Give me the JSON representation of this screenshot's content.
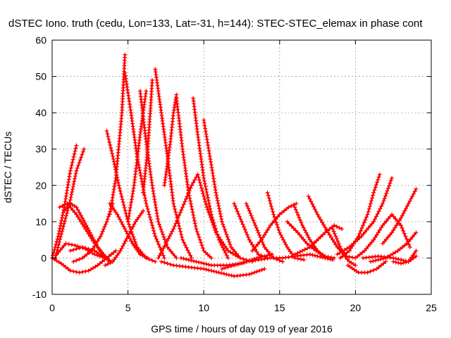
{
  "chart_data": {
    "type": "scatter",
    "title": "dSTEC Iono. truth (cedu, Lon=133, Lat=-31, h=144): STEC-STEC_elemax in phase cont",
    "xlabel": "GPS time / hours of day 019 of year 2016",
    "ylabel": "dSTEC  / TECUs",
    "xlim": [
      0,
      25
    ],
    "ylim": [
      -10,
      60
    ],
    "xticks": [
      "0",
      "5",
      "10",
      "15",
      "20",
      "25"
    ],
    "yticks": [
      "-10",
      "0",
      "10",
      "20",
      "30",
      "40",
      "50",
      "60"
    ],
    "grid": true,
    "marker": "+",
    "color": "#ff0000",
    "series": [
      {
        "x": [
          0.0,
          0.4,
          0.8,
          1.2,
          1.6
        ],
        "y": [
          0,
          6,
          14,
          24,
          31
        ]
      },
      {
        "x": [
          0.2,
          0.7,
          1.2,
          1.6,
          2.1
        ],
        "y": [
          0,
          8,
          16,
          24,
          30
        ]
      },
      {
        "x": [
          0.0,
          0.6,
          1.2,
          1.8,
          2.4,
          3.0,
          3.6,
          4.2
        ],
        "y": [
          0,
          -1.5,
          -3.5,
          -4,
          -3.5,
          -2,
          0,
          2
        ]
      },
      {
        "x": [
          0.3,
          0.9,
          1.5,
          2.2,
          2.8,
          3.5,
          3.9
        ],
        "y": [
          1,
          4,
          3.5,
          2.5,
          1,
          0,
          -1
        ]
      },
      {
        "x": [
          0.5,
          1.0,
          1.6,
          2.2,
          2.8,
          3.4,
          3.8
        ],
        "y": [
          14,
          15,
          12,
          8,
          4,
          1,
          -1
        ]
      },
      {
        "x": [
          0.8,
          1.2,
          1.6,
          2.0,
          2.5,
          3.0,
          3.5
        ],
        "y": [
          13,
          15,
          14,
          11,
          7,
          3,
          0
        ]
      },
      {
        "x": [
          1.4,
          2.0,
          2.6,
          3.2,
          3.6,
          4.0
        ],
        "y": [
          -1,
          0,
          2,
          6,
          10,
          15
        ]
      },
      {
        "x": [
          1.2,
          2.0,
          2.8,
          3.5
        ],
        "y": [
          2,
          3,
          2,
          0
        ]
      },
      {
        "x": [
          3.6,
          4.0,
          4.4,
          5.0,
          5.6,
          6.2,
          6.8
        ],
        "y": [
          35,
          28,
          20,
          10,
          3,
          0,
          -1
        ]
      },
      {
        "x": [
          3.8,
          4.3,
          4.8,
          5.3,
          5.8,
          6.3
        ],
        "y": [
          15,
          12,
          8,
          4,
          1,
          0
        ]
      },
      {
        "x": [
          3.5,
          4.0,
          4.5,
          5.0,
          5.5,
          6.0
        ],
        "y": [
          -2,
          -1,
          2,
          6,
          10,
          13
        ]
      },
      {
        "x": [
          3.8,
          4.2,
          4.6,
          4.8
        ],
        "y": [
          12,
          22,
          40,
          56
        ]
      },
      {
        "x": [
          4.8,
          5.2,
          5.6,
          6.2,
          6.8,
          7.4
        ],
        "y": [
          51,
          40,
          28,
          15,
          6,
          0
        ]
      },
      {
        "x": [
          5.0,
          5.4,
          5.8,
          6.2
        ],
        "y": [
          10,
          20,
          34,
          46
        ]
      },
      {
        "x": [
          5.8,
          6.2,
          6.6,
          7.0,
          7.6,
          8.2
        ],
        "y": [
          46,
          32,
          20,
          10,
          3,
          0
        ]
      },
      {
        "x": [
          6.0,
          6.3,
          6.5,
          6.6
        ],
        "y": [
          18,
          30,
          42,
          49
        ]
      },
      {
        "x": [
          6.8,
          7.2,
          7.6,
          8.0,
          8.6,
          9.2
        ],
        "y": [
          52,
          40,
          28,
          15,
          5,
          0
        ]
      },
      {
        "x": [
          7.4,
          7.8,
          8.0,
          8.2
        ],
        "y": [
          20,
          32,
          40,
          45
        ]
      },
      {
        "x": [
          8.2,
          8.6,
          9.0,
          9.5,
          10.0,
          10.5
        ],
        "y": [
          44,
          30,
          18,
          8,
          2,
          0
        ]
      },
      {
        "x": [
          9.3,
          9.6,
          10.0,
          10.5,
          11.0,
          11.6
        ],
        "y": [
          44,
          34,
          22,
          12,
          5,
          0
        ]
      },
      {
        "x": [
          10.0,
          10.4,
          10.8,
          11.2,
          11.8,
          12.4
        ],
        "y": [
          38,
          28,
          18,
          10,
          3,
          0
        ]
      },
      {
        "x": [
          7.0,
          8.0,
          8.6,
          9.2,
          9.6
        ],
        "y": [
          0,
          8,
          14,
          20,
          23
        ]
      },
      {
        "x": [
          9.6,
          10.2,
          10.8,
          11.6,
          12.4,
          13.2
        ],
        "y": [
          23,
          14,
          7,
          2,
          0,
          -1
        ]
      },
      {
        "x": [
          7.2,
          8.0,
          9.0,
          10.0,
          11.0,
          12.0,
          13.0,
          14.0
        ],
        "y": [
          -1,
          -2,
          -2.5,
          -3,
          -4,
          -5,
          -4.5,
          -3
        ]
      },
      {
        "x": [
          8.5,
          9.5,
          10.5,
          11.5,
          12.5,
          13.5,
          14.5
        ],
        "y": [
          0,
          -1,
          -2,
          -2,
          -1.5,
          0,
          1
        ]
      },
      {
        "x": [
          12.0,
          12.5,
          13.0,
          13.6,
          14.2
        ],
        "y": [
          15,
          10,
          5,
          1,
          0
        ]
      },
      {
        "x": [
          12.8,
          13.2,
          13.6,
          14.0,
          14.6,
          15.2
        ],
        "y": [
          15,
          11,
          7,
          3,
          0,
          -1
        ]
      },
      {
        "x": [
          14.2,
          14.6,
          15.0,
          15.5,
          16.0,
          16.6
        ],
        "y": [
          18,
          12,
          7,
          3,
          0,
          -0.5
        ]
      },
      {
        "x": [
          13.2,
          13.8,
          14.4,
          15.0,
          15.6,
          16.1
        ],
        "y": [
          2,
          5,
          9,
          12,
          14,
          15
        ]
      },
      {
        "x": [
          16.0,
          16.5,
          17.0,
          17.5,
          18.0,
          18.5
        ],
        "y": [
          14,
          9,
          5,
          2,
          0,
          -0.5
        ]
      },
      {
        "x": [
          15.5,
          16.2,
          16.8,
          17.4,
          18.0,
          18.6
        ],
        "y": [
          10,
          7,
          4,
          2,
          0.5,
          0
        ]
      },
      {
        "x": [
          16.9,
          17.5,
          18.2,
          18.8,
          19.4,
          20.0
        ],
        "y": [
          17,
          12,
          7,
          3,
          0.5,
          0
        ]
      },
      {
        "x": [
          16.0,
          17.0,
          18.0,
          18.6,
          19.1
        ],
        "y": [
          1,
          3,
          7,
          9,
          8
        ]
      },
      {
        "x": [
          18.5,
          18.9,
          19.2,
          19.6,
          20.0
        ],
        "y": [
          8,
          4,
          1,
          -1,
          -2
        ]
      },
      {
        "x": [
          19.0,
          19.6,
          20.2,
          20.8,
          21.2,
          21.6
        ],
        "y": [
          0,
          2,
          6,
          12,
          18,
          23
        ]
      },
      {
        "x": [
          18.8,
          19.6,
          20.4,
          21.2,
          21.8,
          22.4
        ],
        "y": [
          1,
          3,
          6,
          10,
          15,
          22
        ]
      },
      {
        "x": [
          19.5,
          20.2,
          20.8,
          21.4,
          22.0
        ],
        "y": [
          -2,
          -4,
          -4,
          -3,
          -1
        ]
      },
      {
        "x": [
          20.0,
          20.6,
          21.2,
          21.8,
          22.4,
          23.0,
          23.6
        ],
        "y": [
          0,
          2,
          5,
          9,
          12,
          9,
          3
        ]
      },
      {
        "x": [
          21.8,
          22.4,
          23.0,
          23.5,
          24.0
        ],
        "y": [
          4,
          7,
          11,
          15,
          19
        ]
      },
      {
        "x": [
          21.0,
          22.0,
          22.8,
          23.4,
          24.0
        ],
        "y": [
          -1,
          0,
          2,
          4,
          7
        ]
      },
      {
        "x": [
          20.5,
          21.5,
          22.5,
          23.5,
          24.0
        ],
        "y": [
          0,
          0.5,
          0,
          -1,
          0.5
        ]
      },
      {
        "x": [
          22.5,
          23.0,
          23.5,
          24.0
        ],
        "y": [
          -1,
          -1.5,
          -1,
          2
        ]
      },
      {
        "x": [
          11.2,
          12.0,
          12.8,
          13.6,
          14.4,
          15.2,
          16.0,
          17.0,
          18.0
        ],
        "y": [
          -3,
          -2,
          -1,
          -0.5,
          0,
          0,
          0.5,
          1,
          0
        ]
      }
    ]
  }
}
